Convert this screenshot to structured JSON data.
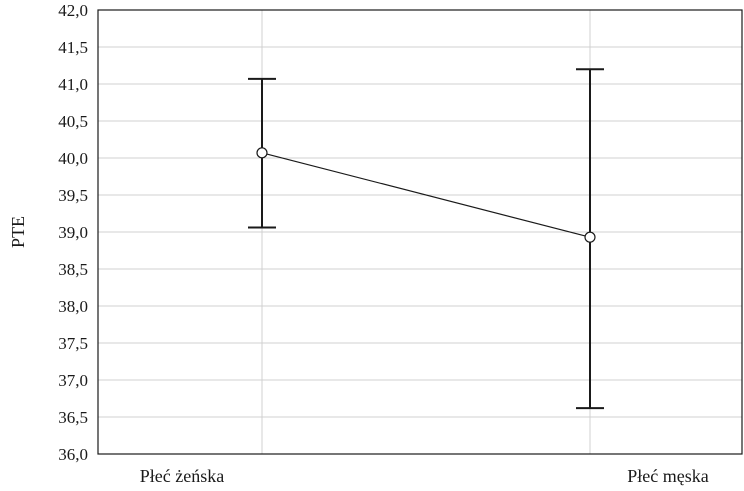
{
  "chart_data": {
    "type": "line",
    "ylabel": "PTE",
    "xlabel": "",
    "categories": [
      "Płeć żeńska",
      "Płeć męska"
    ],
    "series": [
      {
        "values": [
          40.07,
          38.93
        ],
        "error_low": [
          39.06,
          36.62
        ],
        "error_high": [
          41.07,
          41.2
        ]
      }
    ],
    "ylim": [
      36.0,
      42.0
    ],
    "yticks": [
      "36,0",
      "36,5",
      "37,0",
      "37,5",
      "38,0",
      "38,5",
      "39,0",
      "39,5",
      "40,0",
      "40,5",
      "41,0",
      "41,5",
      "42,0"
    ],
    "grid": true,
    "legend": "none",
    "colors": {
      "line": "#1a1a1a",
      "grid": "#d0d0d0",
      "frame": "#1a1a1a",
      "marker_fill": "#ffffff"
    }
  }
}
